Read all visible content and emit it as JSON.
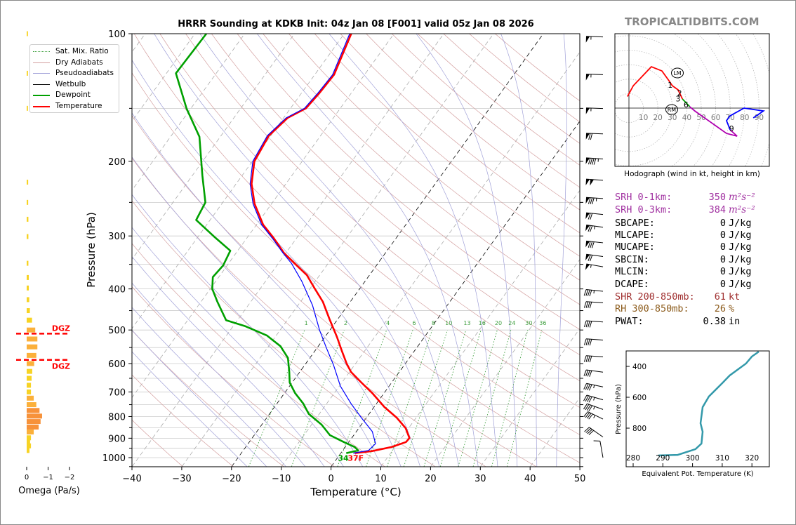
{
  "watermark": "TROPICALTIDBITS.COM",
  "title": "HRRR Sounding at KDKB Init: 04z Jan 08 [F001] valid 05z Jan 08 2026",
  "colors": {
    "temperature": "#ff0000",
    "dewpoint": "#00a000",
    "wetbulb": "#0000ff",
    "dry_adiabat": "#d4a0a0",
    "moist_adiabat": "#a0a0d8",
    "mixing_ratio": "#40a040",
    "isotherm": "#aaaaaa",
    "isobar": "#cccccc",
    "hodo_0_3": "#ff0000",
    "hodo_3_6": "#00a000",
    "hodo_6_9": "#b000b0",
    "hodo_9_12": "#0000ff",
    "theta_e": "#3399aa",
    "omega_small": "#f7d324",
    "omega_mid": "#fbb03b",
    "omega_large": "#f7923a",
    "dgz": "#ff0000",
    "srh": "#a030a0",
    "shr": "#a03030",
    "rh": "#8b5a1a"
  },
  "legend": [
    {
      "label": "Sat. Mix. Ratio",
      "style": "mixing_ratio"
    },
    {
      "label": "Dry Adiabats",
      "style": "dry"
    },
    {
      "label": "Pseudoadiabats",
      "style": "moist"
    },
    {
      "label": "Wetbulb",
      "style": "wetbulb"
    },
    {
      "label": "Dewpoint",
      "style": "dewpoint"
    },
    {
      "label": "Temperature",
      "style": "temperature"
    }
  ],
  "surface": {
    "dewpoint_label": "34",
    "temperature_label": "37F"
  },
  "dgz": {
    "label": "DGZ",
    "top_hpa": 510,
    "bottom_hpa": 588
  },
  "indices": [
    {
      "label": "SRH 0-1km:",
      "value": "350",
      "unit": "m²s⁻²",
      "color": "srh",
      "math": true
    },
    {
      "label": "SRH 0-3km:",
      "value": "384",
      "unit": "m²s⁻²",
      "color": "srh",
      "math": true
    },
    {
      "label": "SBCAPE:",
      "value": "0",
      "unit": "J/kg"
    },
    {
      "label": "MLCAPE:",
      "value": "0",
      "unit": "J/kg"
    },
    {
      "label": "MUCAPE:",
      "value": "0",
      "unit": "J/kg"
    },
    {
      "label": "SBCIN:",
      "value": "0",
      "unit": "J/kg"
    },
    {
      "label": "MLCIN:",
      "value": "0",
      "unit": "J/kg"
    },
    {
      "label": "DCAPE:",
      "value": "0",
      "unit": "J/kg"
    },
    {
      "label": "SHR 200-850mb:",
      "value": "61",
      "unit": "kt",
      "color": "shr"
    },
    {
      "label": "RH 300-850mb:",
      "value": "26",
      "unit": "%",
      "color": "rh"
    },
    {
      "label": "PWAT:",
      "value": "0.38",
      "unit": "in"
    }
  ],
  "chart_data": [
    {
      "id": "skewt",
      "type": "line",
      "xlabel": "Temperature (°C)",
      "ylabel": "Pressure (hPa)",
      "xlim": [
        -40,
        50
      ],
      "ylim": [
        1050,
        100
      ],
      "yscale": "log",
      "skewed": true,
      "xticks": [
        -40,
        -30,
        -20,
        -10,
        0,
        10,
        20,
        30,
        40,
        50
      ],
      "xtick_labels": [
        "−40",
        "−30",
        "−20",
        "−10",
        "0",
        "10",
        "20",
        "30",
        "40",
        "50"
      ],
      "yticks": [
        100,
        200,
        300,
        400,
        500,
        600,
        700,
        800,
        900,
        1000
      ],
      "ytick_labels": [
        "100",
        "200",
        "300",
        "400",
        "500",
        "600",
        "700",
        "800",
        "900",
        "1000"
      ],
      "mixing_ratio_labels": [
        "1",
        "2",
        "4",
        "6",
        "8",
        "10",
        "13",
        "16",
        "20",
        "24",
        "30",
        "36"
      ],
      "mixing_ratio_values": [
        1,
        2,
        4,
        6,
        8,
        10,
        13,
        16,
        20,
        24,
        30,
        36
      ],
      "highlighted_isotherms": [
        -20,
        0
      ],
      "legend_position": "top-left",
      "series": [
        {
          "name": "Temperature",
          "color": "temperature",
          "points": [
            [
              976,
              2.8
            ],
            [
              965,
              6.0
            ],
            [
              944,
              9.3
            ],
            [
              919,
              11.5
            ],
            [
              899,
              11.6
            ],
            [
              852,
              9.4
            ],
            [
              805,
              6.1
            ],
            [
              760,
              2.1
            ],
            [
              704,
              -2.4
            ],
            [
              665,
              -6.1
            ],
            [
              628,
              -9.7
            ],
            [
              600,
              -11.8
            ],
            [
              560,
              -14.6
            ],
            [
              519,
              -17.6
            ],
            [
              472,
              -21.6
            ],
            [
              429,
              -25.5
            ],
            [
              398,
              -29.2
            ],
            [
              371,
              -32.6
            ],
            [
              349,
              -36.6
            ],
            [
              329,
              -40.4
            ],
            [
              304,
              -44.5
            ],
            [
              282,
              -48.7
            ],
            [
              252,
              -53.4
            ],
            [
              226,
              -56.9
            ],
            [
              200,
              -59.6
            ],
            [
              174,
              -60.4
            ],
            [
              158,
              -59.2
            ],
            [
              150,
              -56.9
            ],
            [
              138,
              -56.4
            ],
            [
              125,
              -56.1
            ],
            [
              100,
              -58.6
            ]
          ]
        },
        {
          "name": "Dewpoint",
          "color": "dewpoint",
          "points": [
            [
              976,
              1.1
            ],
            [
              962,
              3.1
            ],
            [
              944,
              1.9
            ],
            [
              919,
              -1.0
            ],
            [
              885,
              -4.8
            ],
            [
              836,
              -8.0
            ],
            [
              789,
              -12.1
            ],
            [
              746,
              -14.7
            ],
            [
              704,
              -17.9
            ],
            [
              665,
              -20.5
            ],
            [
              628,
              -22.1
            ],
            [
              582,
              -24.4
            ],
            [
              546,
              -27.6
            ],
            [
              515,
              -31.9
            ],
            [
              490,
              -37.5
            ],
            [
              474,
              -42.3
            ],
            [
              429,
              -46.7
            ],
            [
              400,
              -49.6
            ],
            [
              375,
              -51.2
            ],
            [
              352,
              -50.8
            ],
            [
              325,
              -51.5
            ],
            [
              301,
              -56.8
            ],
            [
              275,
              -62.8
            ],
            [
              250,
              -63.5
            ],
            [
              216,
              -68.0
            ],
            [
              175,
              -74.2
            ],
            [
              150,
              -80.9
            ],
            [
              124,
              -88.1
            ],
            [
              100,
              -87.7
            ]
          ]
        },
        {
          "name": "Wetbulb",
          "color": "wetbulb",
          "points": [
            [
              976,
              2.5
            ],
            [
              962,
              5.2
            ],
            [
              927,
              5.6
            ],
            [
              868,
              3.2
            ],
            [
              805,
              -1.0
            ],
            [
              746,
              -5.1
            ],
            [
              678,
              -9.8
            ],
            [
              605,
              -14.2
            ],
            [
              550,
              -18.2
            ],
            [
              500,
              -22.1
            ],
            [
              437,
              -27.1
            ],
            [
              383,
              -32.8
            ],
            [
              348,
              -37.4
            ],
            [
              329,
              -40.6
            ],
            [
              304,
              -44.8
            ],
            [
              282,
              -49.0
            ],
            [
              252,
              -53.7
            ],
            [
              226,
              -57.2
            ],
            [
              200,
              -59.9
            ],
            [
              174,
              -60.7
            ],
            [
              158,
              -59.5
            ],
            [
              150,
              -57.2
            ],
            [
              138,
              -56.7
            ],
            [
              125,
              -56.4
            ],
            [
              100,
              -58.9
            ]
          ]
        }
      ],
      "wind_barbs": [
        {
          "p": 101,
          "dir": 272,
          "kt": 55
        },
        {
          "p": 124,
          "dir": 272,
          "kt": 55
        },
        {
          "p": 149,
          "dir": 272,
          "kt": 55
        },
        {
          "p": 171,
          "dir": 272,
          "kt": 70
        },
        {
          "p": 196,
          "dir": 274,
          "kt": 95
        },
        {
          "p": 220,
          "dir": 274,
          "kt": 100
        },
        {
          "p": 243,
          "dir": 274,
          "kt": 85
        },
        {
          "p": 265,
          "dir": 276,
          "kt": 70
        },
        {
          "p": 284,
          "dir": 278,
          "kt": 75
        },
        {
          "p": 309,
          "dir": 276,
          "kt": 80
        },
        {
          "p": 333,
          "dir": 278,
          "kt": 70
        },
        {
          "p": 352,
          "dir": 280,
          "kt": 55
        },
        {
          "p": 402,
          "dir": 276,
          "kt": 45
        },
        {
          "p": 428,
          "dir": 274,
          "kt": 40
        },
        {
          "p": 475,
          "dir": 274,
          "kt": 40
        },
        {
          "p": 524,
          "dir": 274,
          "kt": 40
        },
        {
          "p": 574,
          "dir": 274,
          "kt": 40
        },
        {
          "p": 624,
          "dir": 278,
          "kt": 40
        },
        {
          "p": 676,
          "dir": 282,
          "kt": 45
        },
        {
          "p": 725,
          "dir": 286,
          "kt": 45
        },
        {
          "p": 764,
          "dir": 290,
          "kt": 45
        },
        {
          "p": 805,
          "dir": 296,
          "kt": 45
        },
        {
          "p": 894,
          "dir": 305,
          "kt": 40
        },
        {
          "p": 1000,
          "dir": 350,
          "kt": 10
        }
      ]
    },
    {
      "id": "hodograph",
      "type": "line",
      "caption": "Hodograph (wind in kt, height in km)",
      "ring_labels": [
        "10",
        "20",
        "30",
        "40",
        "50",
        "60",
        "70",
        "80",
        "90"
      ],
      "segments": [
        {
          "color": "hodo_0_3",
          "points": [
            [
              -1,
              8
            ],
            [
              3,
              15.5
            ],
            [
              15.5,
              28.6
            ],
            [
              22.8,
              25.7
            ],
            [
              27.7,
              18.9
            ],
            [
              30,
              15.5
            ],
            [
              34,
              12.6
            ],
            [
              37,
              6.3
            ]
          ]
        },
        {
          "color": "hodo_3_6",
          "points": [
            [
              37,
              6.3
            ],
            [
              42,
              1
            ]
          ]
        },
        {
          "color": "hodo_6_9",
          "points": [
            [
              42,
              1
            ],
            [
              45.6,
              -2
            ],
            [
              67.5,
              -17.5
            ],
            [
              74.8,
              -19.4
            ],
            [
              70,
              -15
            ]
          ]
        },
        {
          "color": "hodo_9_12",
          "points": [
            [
              70,
              -15
            ],
            [
              67.5,
              -8.7
            ],
            [
              70,
              -5.3
            ],
            [
              79.6,
              0
            ],
            [
              93,
              -2
            ],
            [
              86,
              -6.8
            ]
          ]
        }
      ],
      "height_labels": [
        {
          "text": "1",
          "u": 28.5,
          "v": 16
        },
        {
          "text": "2",
          "u": 35,
          "v": 10.5
        },
        {
          "text": "3",
          "u": 34,
          "v": 6.5
        },
        {
          "text": "6",
          "u": 39.5,
          "v": 2.5
        },
        {
          "text": "9",
          "u": 71,
          "v": -14
        }
      ],
      "storm_motion": [
        {
          "label": "LM",
          "u": 33.5,
          "v": 24.3
        },
        {
          "label": "RM",
          "u": 29.6,
          "v": -1
        }
      ]
    },
    {
      "id": "theta_e",
      "type": "line",
      "xlabel": "Equivalent Pot. Temperature (K)",
      "ylabel": "Pressure (hPa)",
      "xticks": [
        280,
        290,
        300,
        310,
        320
      ],
      "yticks": [
        400,
        600,
        800
      ],
      "xlim": [
        277.6,
        326
      ],
      "ylim": [
        1050,
        300
      ],
      "points": [
        [
          977,
          288.5
        ],
        [
          973,
          295
        ],
        [
          936,
          301
        ],
        [
          900,
          303
        ],
        [
          823,
          303.4
        ],
        [
          768,
          302.7
        ],
        [
          664,
          303.4
        ],
        [
          595,
          305.5
        ],
        [
          505,
          310.2
        ],
        [
          459,
          312.5
        ],
        [
          382,
          318
        ],
        [
          336,
          320
        ],
        [
          305,
          322.3
        ]
      ]
    },
    {
      "id": "omega",
      "type": "bar",
      "xlabel": "Omega (Pa/s)",
      "xticks": [
        0,
        -1,
        -2
      ],
      "xtick_labels": [
        "0",
        "−1",
        "−2"
      ],
      "xlim": [
        0.3,
        -2
      ],
      "bars": [
        [
          100,
          -0.06
        ],
        [
          124,
          -0.06
        ],
        [
          150,
          -0.06
        ],
        [
          224,
          -0.07
        ],
        [
          250,
          -0.07
        ],
        [
          274,
          -0.08
        ],
        [
          301,
          -0.08
        ],
        [
          348,
          -0.08
        ],
        [
          376,
          -0.1
        ],
        [
          398,
          -0.1
        ],
        [
          424,
          -0.12
        ],
        [
          450,
          -0.15
        ],
        [
          474,
          -0.25
        ],
        [
          500,
          -0.4
        ],
        [
          525,
          -0.5
        ],
        [
          548,
          -0.5
        ],
        [
          574,
          -0.45
        ],
        [
          600,
          -0.35
        ],
        [
          626,
          -0.26
        ],
        [
          650,
          -0.23
        ],
        [
          675,
          -0.2
        ],
        [
          700,
          -0.2
        ],
        [
          724,
          -0.33
        ],
        [
          750,
          -0.45
        ],
        [
          774,
          -0.6
        ],
        [
          798,
          -0.72
        ],
        [
          822,
          -0.65
        ],
        [
          847,
          -0.56
        ],
        [
          870,
          -0.33
        ],
        [
          898,
          -0.2
        ],
        [
          919,
          -0.16
        ],
        [
          938,
          -0.2
        ],
        [
          962,
          -0.13
        ]
      ]
    }
  ]
}
